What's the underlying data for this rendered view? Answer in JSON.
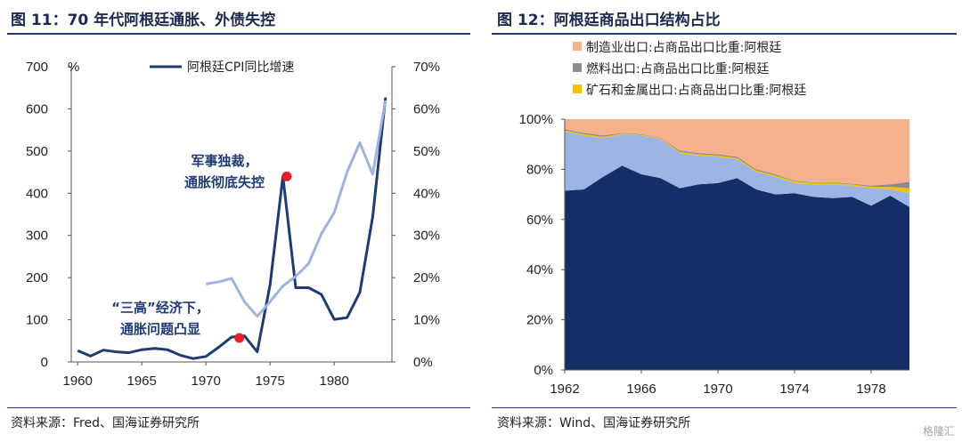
{
  "left_panel": {
    "title": "图 11：70 年代阿根廷通胀、外债失控",
    "source": "资料来源：Fred、国海证券研究所"
  },
  "right_panel": {
    "title": "图 12：阿根廷商品出口结构占比",
    "source": "资料来源：Wind、国海证券研究所"
  },
  "watermark": "格隆汇",
  "chart_data": [
    {
      "type": "line",
      "title": "",
      "xlabel": "",
      "ylabel": "%",
      "xlim": [
        1959.5,
        1984.5
      ],
      "ylim": [
        0,
        700
      ],
      "y2lim": [
        0,
        70
      ],
      "x_ticks": [
        "1960",
        "1965",
        "1970",
        "1975",
        "1980"
      ],
      "y_ticks": [
        "0",
        "100",
        "200",
        "300",
        "400",
        "500",
        "600",
        "700"
      ],
      "y2_ticks": [
        "0%",
        "10%",
        "20%",
        "30%",
        "40%",
        "50%",
        "60%",
        "70%"
      ],
      "legend": "top-center",
      "series": [
        {
          "name": "阿根廷CPI同比增速",
          "axis": "left",
          "color": "#1f3a75",
          "x": [
            1960,
            1961,
            1962,
            1963,
            1964,
            1965,
            1966,
            1967,
            1968,
            1969,
            1970,
            1971,
            1972,
            1973,
            1974,
            1975,
            1976,
            1977,
            1978,
            1979,
            1980,
            1981,
            1982,
            1983,
            1984
          ],
          "values": [
            27,
            14,
            28,
            24,
            22,
            29,
            32,
            29,
            16,
            8,
            13,
            35,
            59,
            62,
            24,
            183,
            440,
            176,
            176,
            160,
            101,
            105,
            165,
            344,
            627
          ]
        },
        {
          "axis": "right",
          "color": "#9db3e2",
          "x": [
            1970,
            1971,
            1972,
            1973,
            1974,
            1975,
            1976,
            1977,
            1978,
            1979,
            1980,
            1981,
            1982,
            1983,
            1984
          ],
          "values": [
            18.5,
            19.0,
            19.8,
            14.3,
            10.8,
            14.3,
            18.0,
            20.3,
            23.3,
            30.4,
            35.4,
            45.0,
            52.0,
            44.5,
            62.0
          ]
        }
      ],
      "annotations": [
        {
          "lines": [
            "军事独裁，",
            "通胀彻底失控"
          ],
          "x": 1976.3,
          "y": 440,
          "marker_color": "#ee1c25"
        },
        {
          "lines": [
            "“三高”经济下，",
            "通胀问题凸显"
          ],
          "x": 1972.6,
          "y": 57,
          "marker_color": "#ee1c25"
        }
      ]
    },
    {
      "type": "area",
      "stacked": true,
      "title": "",
      "xlabel": "",
      "ylabel": "",
      "xlim": [
        1962,
        1980
      ],
      "ylim": [
        0,
        100
      ],
      "x_ticks": [
        "1962",
        "1966",
        "1970",
        "1974",
        "1978"
      ],
      "y_ticks": [
        "0%",
        "20%",
        "40%",
        "60%",
        "80%",
        "100%"
      ],
      "legend": "top-left",
      "x": [
        1962,
        1963,
        1964,
        1965,
        1966,
        1967,
        1968,
        1969,
        1970,
        1971,
        1972,
        1973,
        1974,
        1975,
        1976,
        1977,
        1978,
        1979,
        1980
      ],
      "series": [
        {
          "name": "",
          "color": "#142f68",
          "values": [
            71.5,
            72.0,
            77.0,
            81.5,
            78.0,
            76.5,
            72.5,
            74.0,
            74.5,
            76.5,
            72.0,
            70.0,
            70.5,
            69.0,
            68.5,
            69.0,
            65.5,
            69.5,
            65.0
          ]
        },
        {
          "name": "",
          "color": "#9cb5e4",
          "values": [
            23.5,
            21.5,
            15.5,
            12.5,
            15.5,
            15.5,
            14.0,
            11.5,
            10.5,
            7.5,
            7.0,
            7.0,
            4.0,
            5.0,
            5.5,
            4.5,
            7.0,
            2.5,
            5.5
          ]
        },
        {
          "name": "矿石和金属出口:占商品出口比重:阿根廷",
          "color": "#f5c000",
          "values": [
            0.5,
            0.5,
            0.5,
            0.3,
            0.3,
            0.3,
            0.5,
            0.5,
            0.5,
            0.5,
            0.5,
            0.5,
            0.7,
            0.5,
            0.5,
            0.5,
            0.5,
            1.0,
            2.0
          ]
        },
        {
          "name": "燃料出口:占商品出口比重:阿根廷",
          "color": "#8c8c8c",
          "values": [
            0.5,
            0.5,
            0.5,
            0.2,
            0.2,
            0.2,
            0.5,
            0.5,
            0.5,
            0.5,
            0.5,
            0.5,
            0.3,
            0.3,
            0.3,
            0.3,
            0.5,
            1.0,
            2.5
          ]
        },
        {
          "name": "制造业出口:占商品出口比重:阿根廷",
          "color": "#f4b18c",
          "values": [
            4.0,
            5.5,
            6.5,
            5.5,
            6.0,
            7.5,
            12.5,
            13.5,
            14.0,
            15.0,
            20.0,
            22.0,
            24.5,
            25.2,
            25.2,
            25.7,
            26.5,
            26.0,
            25.0
          ]
        }
      ]
    }
  ]
}
